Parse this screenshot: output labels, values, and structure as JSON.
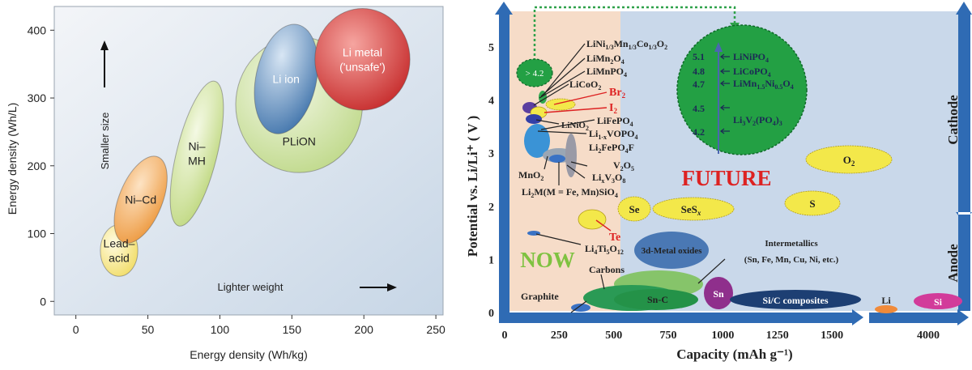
{
  "chart_data": [
    {
      "type": "scatter",
      "xlabel": "Energy density (Wh/kg)",
      "ylabel": "Energy density (Wh/L)",
      "xlim": [
        -15,
        255
      ],
      "ylim": [
        -20,
        435
      ],
      "xticks": [
        "0",
        "50",
        "100",
        "150",
        "200",
        "250"
      ],
      "yticks": [
        "0",
        "100",
        "200",
        "300",
        "400"
      ],
      "annotations": {
        "up": "Smaller size",
        "right": "Lighter weight"
      },
      "regions": [
        {
          "label": "Lead–\nacid",
          "cx": 30,
          "cy": 75,
          "rx": 13,
          "ry": 38,
          "angle": 0,
          "fill": "#f2e46e"
        },
        {
          "label": "Ni–Cd",
          "cx": 45,
          "cy": 150,
          "rx": 15,
          "ry": 68,
          "angle": 22,
          "fill": "#f1a14d"
        },
        {
          "label": "Ni–\nMH",
          "cx": 84,
          "cy": 218,
          "rx": 14,
          "ry": 110,
          "angle": 14,
          "fill": "#c6dc88"
        },
        {
          "label": "PLiON",
          "cx": 155,
          "cy": 290,
          "rx": 44,
          "ry": 100,
          "angle": 0,
          "fill": "#c9df97"
        },
        {
          "label": "Li ion",
          "cx": 146,
          "cy": 328,
          "rx": 21,
          "ry": 82,
          "angle": 12,
          "fill": "#5a88b8"
        },
        {
          "label": "Li metal\n('unsafe')",
          "cx": 199,
          "cy": 357,
          "rx": 33,
          "ry": 75,
          "angle": 0,
          "fill": "#d3292a"
        }
      ]
    },
    {
      "type": "scatter",
      "xlabel": "Capacity (mAh g⁻¹)",
      "ylabel": "Potential vs. Li/Li⁺ ( V )",
      "ylim": [
        -0.1,
        5.7
      ],
      "xticks": [
        "0",
        "250",
        "500",
        "750",
        "1000",
        "1250",
        "1500",
        "4000"
      ],
      "yticks": [
        "0",
        "1",
        "2",
        "3",
        "4",
        "5"
      ],
      "side_labels": {
        "cathode": "Cathode",
        "anode": "Anode"
      },
      "region_labels": {
        "now": "NOW",
        "future": "FUTURE"
      },
      "materials": [
        {
          "label": "LiNi1/3Mn1/3Co1/3O2",
          "x": 160,
          "y": 4.1
        },
        {
          "label": "LiMn2O4",
          "x": 150,
          "y": 4.05
        },
        {
          "label": "LiMnPO4",
          "x": 150,
          "y": 4.0
        },
        {
          "label": "LiCoO2",
          "x": 140,
          "y": 3.9
        },
        {
          "label": "Br2",
          "x": 200,
          "y": 3.95
        },
        {
          "label": "I2",
          "x": 160,
          "y": 3.8
        },
        {
          "label": "LiNiO2",
          "x": 160,
          "y": 3.7
        },
        {
          "label": "LiFePO4",
          "x": 165,
          "y": 3.45
        },
        {
          "label": "Li1-xVOPO4",
          "x": 160,
          "y": 3.4
        },
        {
          "label": "Li2FePO4F",
          "x": 135,
          "y": 3.15
        },
        {
          "label": "V2O5",
          "x": 285,
          "y": 2.95
        },
        {
          "label": "LixV3O8",
          "x": 280,
          "y": 2.9
        },
        {
          "label": "MnO2",
          "x": 220,
          "y": 3.0
        },
        {
          "label": "Li2M(M = Fe, Mn)SiO4",
          "x": 250,
          "y": 2.95
        },
        {
          "label": "Se",
          "x": 590,
          "y": 1.95
        },
        {
          "label": "SeSx",
          "x": 780,
          "y": 1.95
        },
        {
          "label": "S",
          "x": 1400,
          "y": 2.05
        },
        {
          "label": "O2",
          "x": 1560,
          "y": 2.95
        },
        {
          "label": "Te",
          "x": 420,
          "y": 1.8
        },
        {
          "label": "Li4Ti5O12",
          "x": 160,
          "y": 1.55
        },
        {
          "label": "3d-Metal oxides",
          "x": 760,
          "y": 1.25
        },
        {
          "label": "Intermetallics (Sn, Fe, Mn, Cu, Ni, etc.)",
          "x": 800,
          "y": 0.55
        },
        {
          "label": "Carbons",
          "x": 700,
          "y": 0.35
        },
        {
          "label": "Sn-C",
          "x": 700,
          "y": 0.3
        },
        {
          "label": "Sn",
          "x": 990,
          "y": 0.45
        },
        {
          "label": "Si/C composites",
          "x": 1260,
          "y": 0.25
        },
        {
          "label": "Graphite",
          "x": 330,
          "y": 0.1
        },
        {
          "label": "Li",
          "x": 3860,
          "y": 0.1
        },
        {
          "label": "Si",
          "x": 4200,
          "y": 0.3
        }
      ],
      "future_circle": {
        "bubble": "> 4.2",
        "ticks": [
          "5.1",
          "4.8",
          "4.7",
          "4.5",
          "4.2"
        ],
        "entries": [
          {
            "label": "LiNiPO4",
            "y": 5.1
          },
          {
            "label": "LiCoPO4",
            "y": 4.8
          },
          {
            "label": "LiMn1.5Ni0.5O4",
            "y": 4.7
          },
          {
            "label": "Li3V2(PO4)3",
            "y": 4.3
          }
        ]
      }
    }
  ],
  "colors": {
    "now_bg": "#f6dcc8",
    "future_bg": "#c8d8ec",
    "axis_blue": "#2f6bb4",
    "future_green": "#23a044",
    "future_red": "#dd2222",
    "now_green": "#7fc241"
  }
}
